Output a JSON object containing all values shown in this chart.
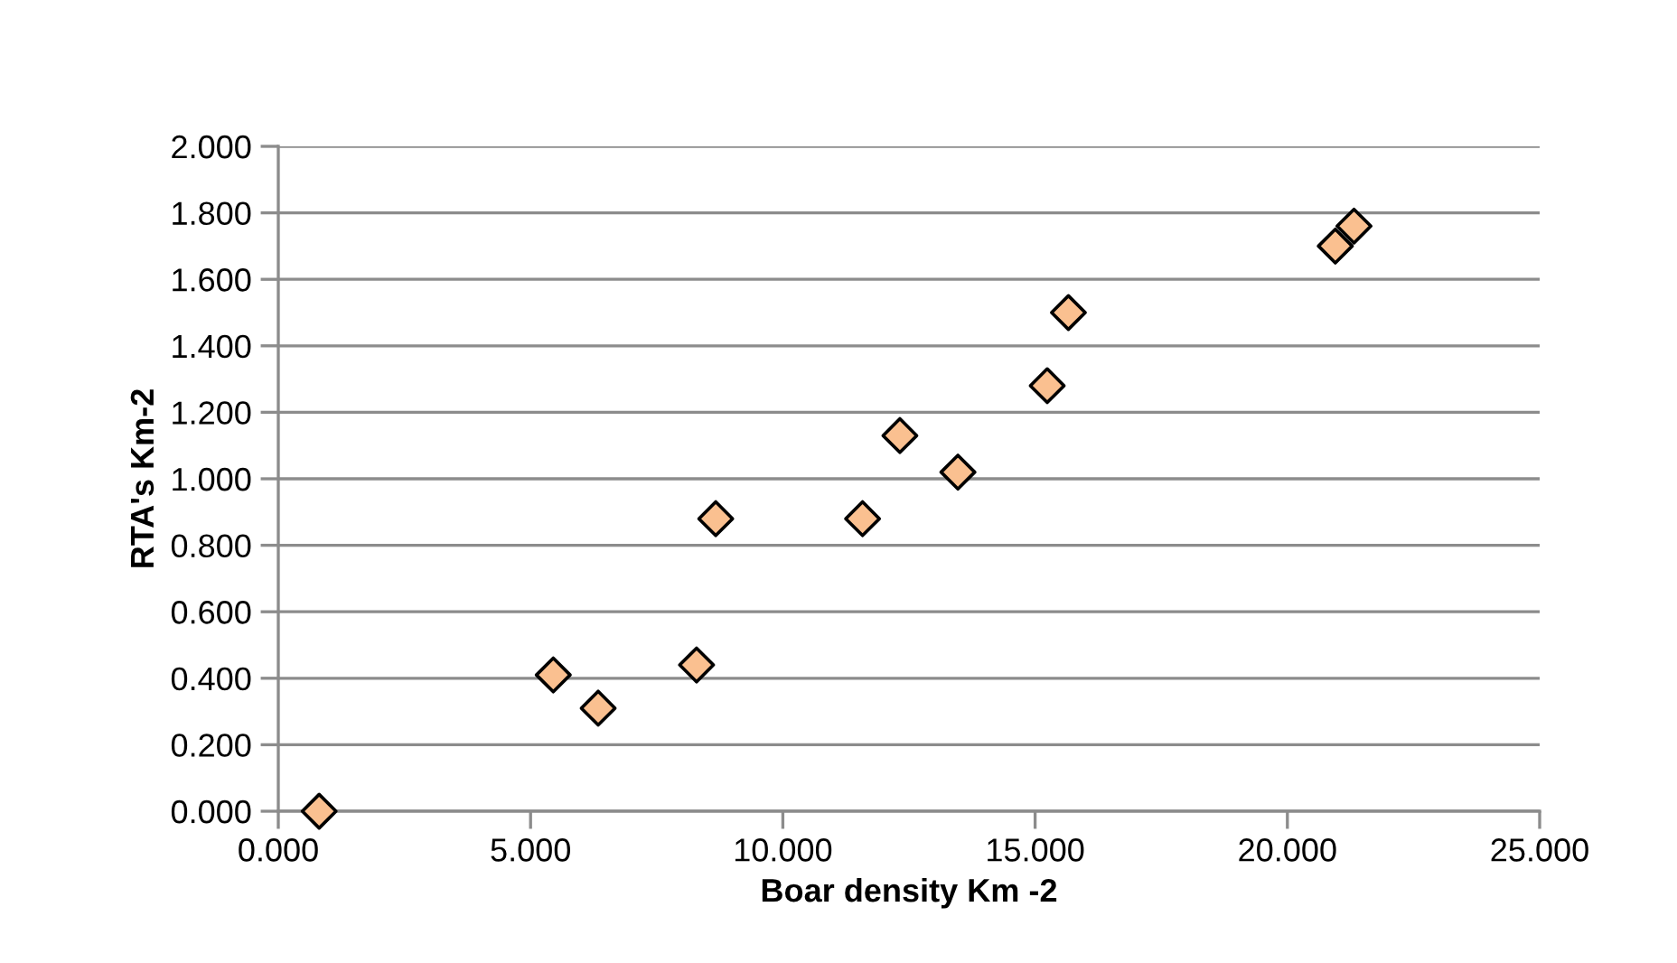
{
  "chart_data": {
    "type": "scatter",
    "xlabel": "Boar density Km -2",
    "ylabel": "RTA's Km-2",
    "x": [
      0.81,
      5.45,
      6.34,
      8.29,
      8.67,
      11.58,
      12.32,
      13.47,
      15.24,
      15.66,
      20.95,
      21.32
    ],
    "series": [
      {
        "color": "#fac090",
        "values": [
          0.0,
          0.41,
          0.31,
          0.44,
          0.88,
          0.88,
          1.13,
          1.02,
          1.28,
          1.5,
          1.7,
          1.76
        ]
      }
    ],
    "xlim": [
      0,
      25
    ],
    "xticks": [
      {
        "value": 0,
        "label": "0.000"
      },
      {
        "value": 5,
        "label": "5.000"
      },
      {
        "value": 10,
        "label": "10.000"
      },
      {
        "value": 15,
        "label": "15.000"
      },
      {
        "value": 20,
        "label": "20.000"
      },
      {
        "value": 25,
        "label": "25.000"
      }
    ],
    "ylim": [
      0,
      2
    ],
    "yticks": [
      {
        "value": 0,
        "label": "0.000"
      },
      {
        "value": 0.2,
        "label": "0.200"
      },
      {
        "value": 0.4,
        "label": "0.400"
      },
      {
        "value": 0.6,
        "label": "0.600"
      },
      {
        "value": 0.8,
        "label": "0.800"
      },
      {
        "value": 1.0,
        "label": "1.000"
      },
      {
        "value": 1.2,
        "label": "1.200"
      },
      {
        "value": 1.4,
        "label": "1.400"
      },
      {
        "value": 1.6,
        "label": "1.600"
      },
      {
        "value": 1.8,
        "label": "1.800"
      },
      {
        "value": 2.0,
        "label": "2.000"
      }
    ],
    "grid": "y",
    "legend": false,
    "marker": "diamond"
  }
}
